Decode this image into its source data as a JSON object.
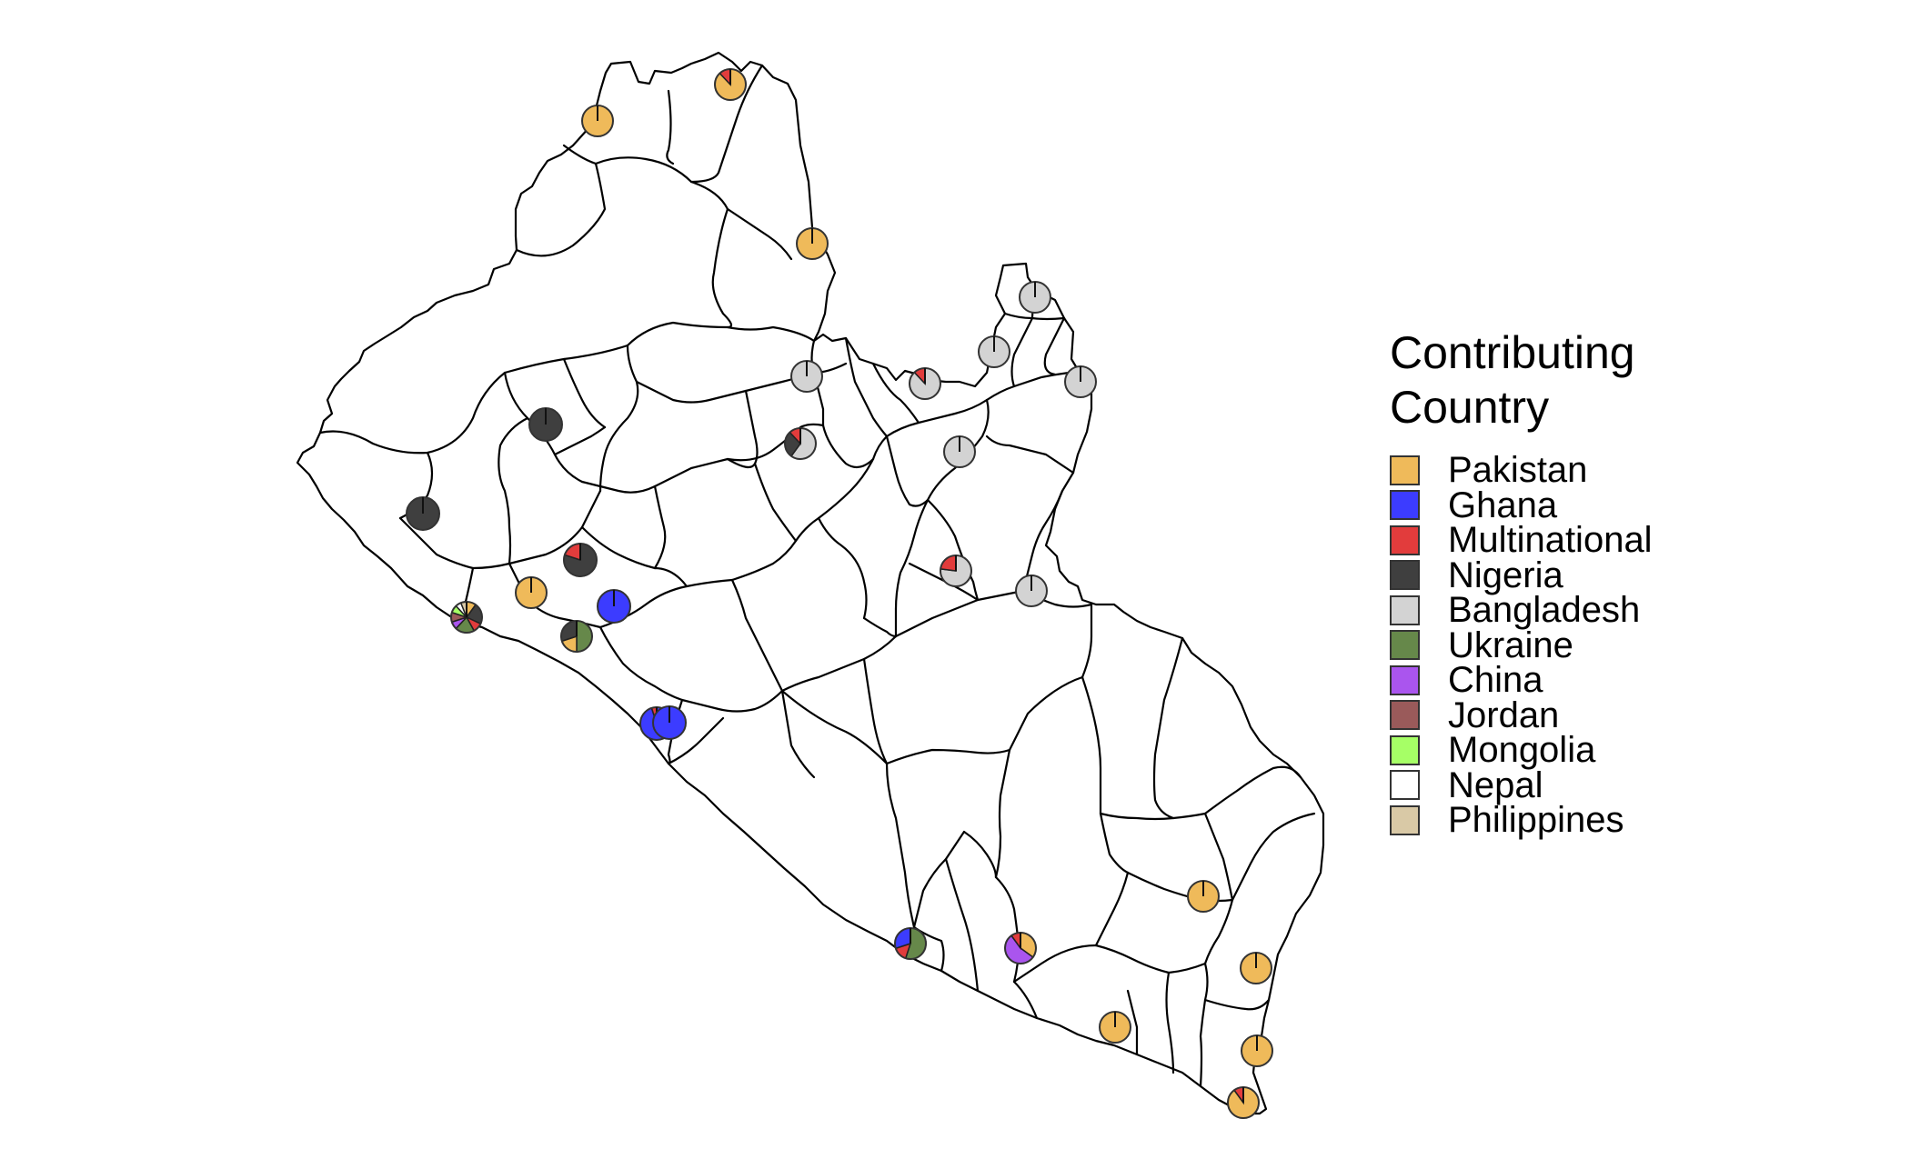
{
  "legend": {
    "title": "Contributing\nCountry",
    "items": [
      {
        "label": "Pakistan",
        "color": "#EFBA5A"
      },
      {
        "label": "Ghana",
        "color": "#3C3CFF"
      },
      {
        "label": "Multinational",
        "color": "#E23C3C"
      },
      {
        "label": "Nigeria",
        "color": "#3F3F3F"
      },
      {
        "label": "Bangladesh",
        "color": "#D3D3D3"
      },
      {
        "label": "Ukraine",
        "color": "#66884A"
      },
      {
        "label": "China",
        "color": "#AA55EE"
      },
      {
        "label": "Jordan",
        "color": "#9A5A5A"
      },
      {
        "label": "Mongolia",
        "color": "#A6FF66"
      },
      {
        "label": "Nepal",
        "color": "#FFFFFF"
      },
      {
        "label": "Philippines",
        "color": "#D9C9A6"
      }
    ]
  },
  "map_data": {
    "region": "Liberia",
    "boundaries": "district"
  }
}
